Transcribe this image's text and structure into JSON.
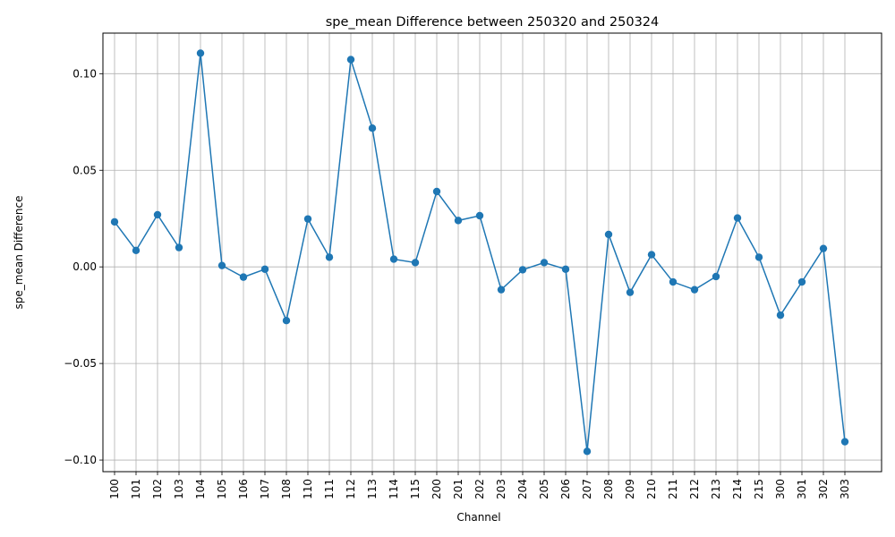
{
  "chart_data": {
    "type": "line",
    "title": "spe_mean Difference between 250320 and 250324",
    "xlabel": "Channel",
    "ylabel": "spe_mean Difference",
    "grid": true,
    "marker": "circle",
    "color": "#1f77b4",
    "ylim": [
      -0.106,
      0.121
    ],
    "yticks": [
      "0.10",
      "0.05",
      "0.00",
      "−0.05",
      "−0.10"
    ],
    "ytick_values": [
      0.1,
      0.05,
      0.0,
      -0.05,
      -0.1
    ],
    "categories": [
      "100",
      "101",
      "102",
      "103",
      "104",
      "105",
      "106",
      "107",
      "108",
      "110",
      "111",
      "112",
      "113",
      "114",
      "115",
      "200",
      "201",
      "202",
      "203",
      "204",
      "205",
      "206",
      "207",
      "208",
      "209",
      "210",
      "211",
      "212",
      "213",
      "214",
      "215",
      "300",
      "301",
      "302",
      "303"
    ],
    "values": [
      0.0233,
      0.0085,
      0.027,
      0.01,
      0.1106,
      0.0007,
      -0.0053,
      -0.0012,
      -0.0278,
      0.0248,
      0.005,
      0.1073,
      0.0718,
      0.004,
      0.0022,
      0.039,
      0.024,
      0.0265,
      -0.0118,
      -0.0015,
      0.0022,
      -0.0012,
      -0.0955,
      0.0168,
      -0.0132,
      0.0063,
      -0.0078,
      -0.0118,
      -0.005,
      0.0253,
      0.005,
      -0.025,
      -0.0078,
      0.0095,
      -0.0905
    ]
  }
}
